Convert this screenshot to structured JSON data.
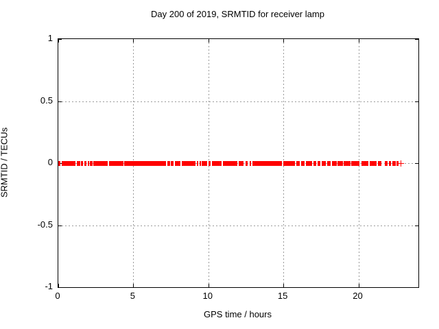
{
  "chart_data": {
    "type": "scatter",
    "title": "Day 200 of 2019, SRMTID for receiver lamp",
    "xlabel": "GPS time / hours",
    "ylabel": "SRMTID / TECUs",
    "xlim": [
      0,
      24
    ],
    "ylim": [
      -1,
      1
    ],
    "xticks": [
      {
        "value": 0,
        "label": "0"
      },
      {
        "value": 5,
        "label": "5"
      },
      {
        "value": 10,
        "label": "10"
      },
      {
        "value": 15,
        "label": "15"
      },
      {
        "value": 20,
        "label": "20"
      }
    ],
    "yticks": [
      {
        "value": 1,
        "label": "1"
      },
      {
        "value": 0.5,
        "label": "0.5"
      },
      {
        "value": 0,
        "label": "0"
      },
      {
        "value": -0.5,
        "label": "-0.5"
      },
      {
        "value": -1,
        "label": "-1"
      }
    ],
    "grid": "dotted",
    "grid_color": "#9a9a9a",
    "legend": "none",
    "marker": "plus",
    "marker_color": "#ff0000",
    "series_constant_y": 0,
    "band_segments_hours": [
      [
        0.0,
        0.15
      ],
      [
        0.23,
        1.14
      ],
      [
        1.23,
        1.46
      ],
      [
        1.51,
        1.65
      ],
      [
        1.74,
        1.88
      ],
      [
        1.97,
        2.06
      ],
      [
        2.1,
        2.29
      ],
      [
        2.33,
        3.29
      ],
      [
        3.38,
        4.33
      ],
      [
        4.38,
        7.18
      ],
      [
        7.27,
        7.45
      ],
      [
        7.5,
        7.68
      ],
      [
        7.77,
        8.13
      ],
      [
        8.23,
        9.14
      ],
      [
        9.23,
        9.32
      ],
      [
        9.41,
        9.5
      ],
      [
        9.55,
        9.92
      ],
      [
        10.01,
        10.15
      ],
      [
        10.24,
        10.88
      ],
      [
        10.97,
        11.93
      ],
      [
        12.02,
        12.34
      ],
      [
        12.48,
        12.62
      ],
      [
        12.75,
        12.84
      ],
      [
        12.93,
        14.9
      ],
      [
        14.99,
        15.77
      ],
      [
        15.86,
        16.09
      ],
      [
        16.18,
        16.41
      ],
      [
        16.5,
        16.91
      ],
      [
        17.01,
        17.19
      ],
      [
        17.28,
        17.46
      ],
      [
        17.55,
        17.82
      ],
      [
        17.92,
        18.15
      ],
      [
        18.24,
        18.56
      ],
      [
        18.61,
        18.97
      ],
      [
        19.02,
        19.47
      ],
      [
        19.52,
        20.07
      ],
      [
        20.21,
        20.66
      ],
      [
        20.75,
        21.21
      ],
      [
        21.3,
        21.53
      ],
      [
        21.76,
        21.94
      ],
      [
        22.03,
        22.17
      ],
      [
        22.26,
        22.49
      ],
      [
        22.53,
        22.67
      ]
    ],
    "isolated_points_hours": [
      22.81
    ]
  }
}
